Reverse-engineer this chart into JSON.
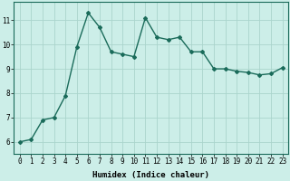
{
  "xlabel": "Humidex (Indice chaleur)",
  "ylabel": "",
  "x": [
    0,
    1,
    2,
    3,
    4,
    5,
    6,
    7,
    8,
    9,
    10,
    11,
    12,
    13,
    14,
    15,
    16,
    17,
    18,
    19,
    20,
    21,
    22,
    23
  ],
  "y": [
    6.0,
    6.1,
    6.9,
    7.0,
    7.9,
    9.9,
    11.3,
    10.7,
    9.7,
    9.6,
    9.5,
    11.1,
    10.3,
    10.2,
    10.3,
    9.7,
    9.7,
    9.0,
    9.0,
    8.9,
    8.85,
    8.75,
    8.8,
    9.05
  ],
  "line_color": "#1a6b5a",
  "marker": "D",
  "marker_size": 2.0,
  "bg_color": "#cceee8",
  "grid_color": "#aad4cc",
  "ylim": [
    5.5,
    11.75
  ],
  "yticks": [
    6,
    7,
    8,
    9,
    10,
    11
  ],
  "xticks": [
    0,
    1,
    2,
    3,
    4,
    5,
    6,
    7,
    8,
    9,
    10,
    11,
    12,
    13,
    14,
    15,
    16,
    17,
    18,
    19,
    20,
    21,
    22,
    23
  ],
  "tick_fontsize": 5.5,
  "xlabel_fontsize": 6.5,
  "line_width": 1.0
}
